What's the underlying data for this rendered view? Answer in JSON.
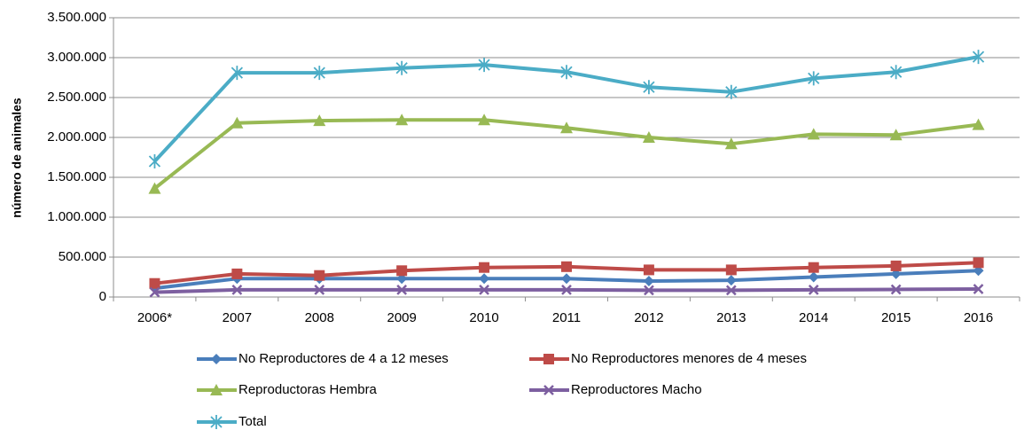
{
  "chart_data": {
    "type": "line",
    "y_label": "número de animales",
    "categories": [
      "2006*",
      "2007",
      "2008",
      "2009",
      "2010",
      "2011",
      "2012",
      "2013",
      "2014",
      "2015",
      "2016"
    ],
    "series": [
      {
        "name": "No Reproductores de 4 a 12 meses",
        "color": "#4a7ebb",
        "marker": "diamond",
        "values": [
          110000,
          230000,
          230000,
          230000,
          230000,
          230000,
          200000,
          210000,
          250000,
          290000,
          330000
        ]
      },
      {
        "name": "No Reproductores menores de 4 meses",
        "color": "#be4b48",
        "marker": "square",
        "values": [
          170000,
          290000,
          270000,
          330000,
          370000,
          380000,
          340000,
          340000,
          370000,
          390000,
          430000
        ]
      },
      {
        "name": "Reproductoras Hembra",
        "color": "#98b954",
        "marker": "triangle",
        "values": [
          1360000,
          2180000,
          2210000,
          2220000,
          2220000,
          2120000,
          2000000,
          1920000,
          2040000,
          2030000,
          2160000
        ]
      },
      {
        "name": "Reproductores Macho",
        "color": "#7d5fa0",
        "marker": "x",
        "values": [
          60000,
          90000,
          90000,
          90000,
          90000,
          90000,
          85000,
          85000,
          90000,
          95000,
          100000
        ]
      },
      {
        "name": "Total",
        "color": "#4bacc6",
        "marker": "asterisk",
        "values": [
          1700000,
          2810000,
          2810000,
          2870000,
          2910000,
          2820000,
          2630000,
          2570000,
          2740000,
          2820000,
          3010000
        ]
      }
    ],
    "ylim": [
      0,
      3500000
    ],
    "yticks": [
      0,
      {
        "value": 500000,
        "label": "500.000"
      },
      {
        "value": 1000000,
        "label": "1.000.000"
      },
      {
        "value": 1500000,
        "label": "1.500.000"
      },
      {
        "value": 2000000,
        "label": "2.000.000"
      },
      {
        "value": 2500000,
        "label": "2.500.000"
      },
      {
        "value": 3000000,
        "label": "3.000.000"
      },
      {
        "value": 3500000,
        "label": "3.500.000"
      }
    ],
    "grid": true,
    "legend": "bottom"
  }
}
